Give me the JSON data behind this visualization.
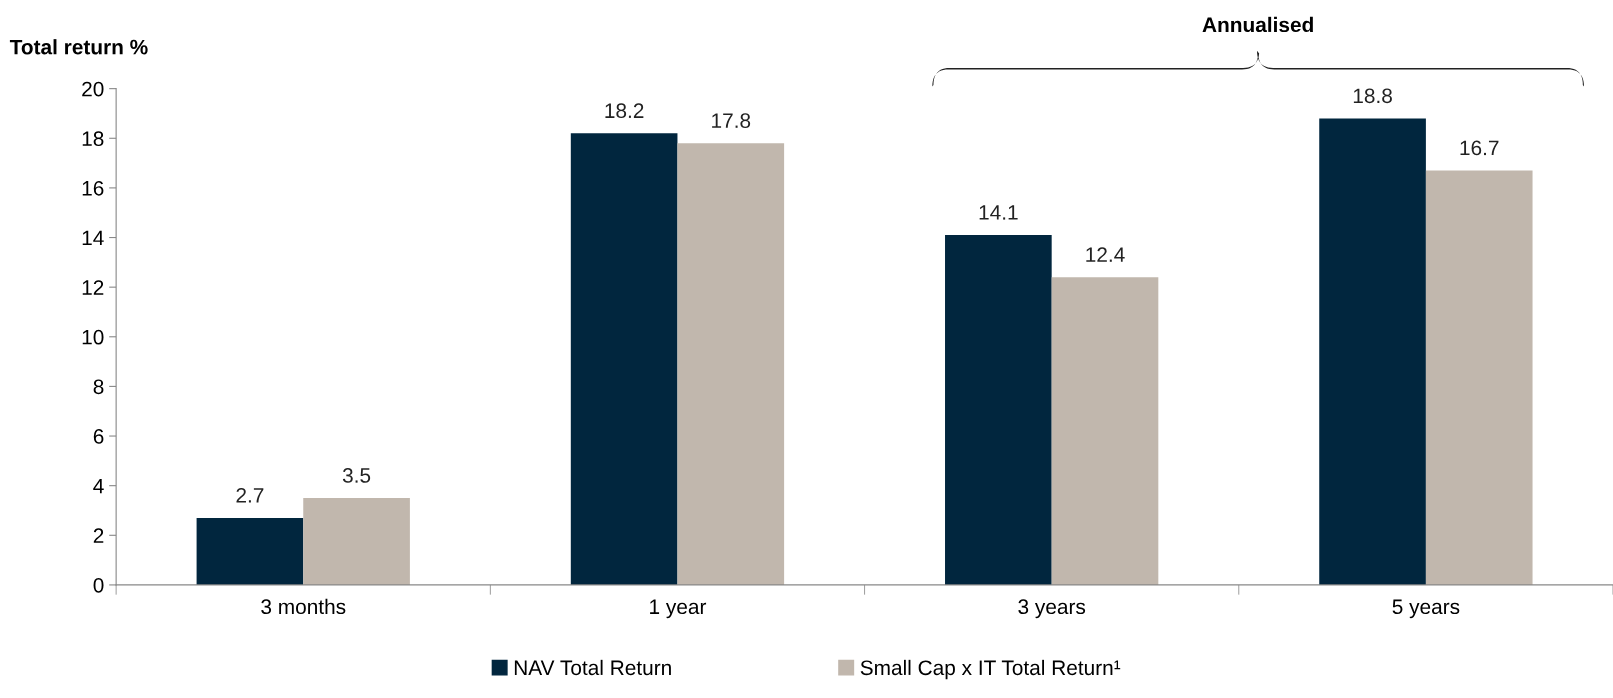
{
  "chart_data": {
    "type": "bar",
    "ylabel": "Total return %",
    "categories": [
      "3 months",
      "1 year",
      "3 years",
      "5 years"
    ],
    "series": [
      {
        "name": "NAV Total Return",
        "color": "#01263e",
        "values": [
          2.7,
          18.2,
          14.1,
          18.8
        ]
      },
      {
        "name": "Small Cap x IT Total Return¹",
        "color": "#c1b7ad",
        "values": [
          3.5,
          17.8,
          12.4,
          16.7
        ]
      }
    ],
    "ylim": [
      0,
      20
    ],
    "yticks": [
      0,
      2,
      4,
      6,
      8,
      10,
      12,
      14,
      16,
      18,
      20
    ],
    "data_labels": true,
    "grid": false,
    "legend": "bottom",
    "annotations": [
      "Annualised"
    ]
  }
}
